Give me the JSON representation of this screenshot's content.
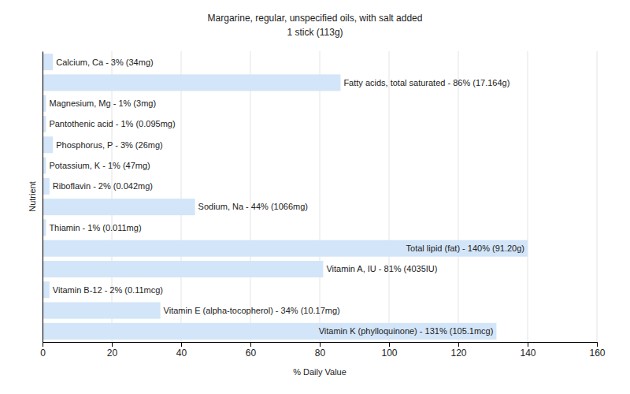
{
  "chart_data": {
    "type": "bar",
    "orientation": "horizontal",
    "title": "Margarine, regular, unspecified oils, with salt added",
    "subtitle": "1 stick (113g)",
    "x_label": "% Daily Value",
    "y_label": "Nutrient",
    "categories": [
      "Calcium, Ca - 3% (34mg)",
      "Fatty acids, total saturated - 86% (17.164g)",
      "Magnesium, Mg - 1% (3mg)",
      "Pantothenic acid - 1% (0.095mg)",
      "Phosphorus, P - 3% (26mg)",
      "Potassium, K - 1% (47mg)",
      "Riboflavin - 2% (0.042mg)",
      "Sodium, Na - 44% (1066mg)",
      "Thiamin - 1% (0.011mg)",
      "Total lipid (fat) - 140% (91.20g)",
      "Vitamin A, IU - 81% (4035IU)",
      "Vitamin B-12 - 2% (0.11mcg)",
      "Vitamin E (alpha-tocopherol) - 34% (10.17mg)",
      "Vitamin K (phylloquinone) - 131% (105.1mcg)"
    ],
    "values": [
      3,
      86,
      1,
      1,
      3,
      1,
      2,
      44,
      1,
      140,
      81,
      2,
      34,
      131
    ],
    "color": "#d3e5f8",
    "xlim": [
      0,
      160
    ],
    "xticks": [
      0,
      20,
      40,
      60,
      80,
      100,
      120,
      140,
      160
    ],
    "grid": true,
    "tick_labels": "x"
  }
}
